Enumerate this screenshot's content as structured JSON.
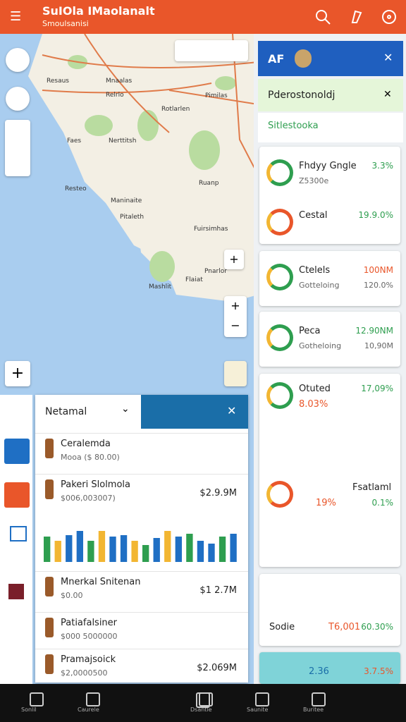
{
  "header": {
    "title": "SuIOla IMaolanalt",
    "subtitle": "Smoulsanisi"
  },
  "map": {
    "labels": [
      "Resaus",
      "Mnaalas",
      "Relrlo",
      "Pimilas",
      "Rotlarlen",
      "Faes",
      "Nerttitsh",
      "Ruanp",
      "Resteo",
      "Maninaite",
      "Pitaleth",
      "Fuirsimhas",
      "Pnarlor",
      "Mashlit",
      "Flaiat"
    ]
  },
  "panel": {
    "title": "AF",
    "highlight": "Pderostonoldj",
    "subtitle": "Sitlestooka",
    "cards": [
      {
        "rows": [
          {
            "name": "Fhdyy Gngle",
            "sub": "Z5300e",
            "value": "3.3%"
          },
          {
            "name": "Cestal",
            "value": "19.9.0%"
          }
        ]
      },
      {
        "rows": [
          {
            "name": "Ctelels",
            "sub": "Gotteloing",
            "value": "100NM",
            "value2": "120.0%"
          }
        ]
      },
      {
        "rows": [
          {
            "name": "Peca",
            "sub": "Gotheloing",
            "value": "12.90NM",
            "value2": "10,90M"
          }
        ]
      },
      {
        "rows": [
          {
            "name": "Otuted",
            "sub": "8.03%",
            "value": "17,09%"
          },
          {
            "name": "Fsatlaml",
            "sub": "19%",
            "value": "0.1%"
          }
        ]
      },
      {
        "rows": [
          {
            "name": "Sodie",
            "sub": "T6,001",
            "value": "60.30%"
          }
        ]
      },
      {
        "rows": [
          {
            "sub": "2.36",
            "value": "3.7.5%"
          }
        ]
      }
    ]
  },
  "sheet": {
    "title": "Netamal",
    "items": [
      {
        "name": "Ceralemda",
        "sub": "Mooa ($ 80.00)"
      },
      {
        "name": "Pakeri Slolmola",
        "sub": "$006,003007)",
        "value": "$2.9.9M"
      },
      {
        "name": "Mnerkal Snitenan",
        "sub": "$0.00",
        "value": "$1 2.7M"
      },
      {
        "name": "Patiafalsiner",
        "sub": "$000 5000000"
      },
      {
        "name": "Pramajsoick",
        "sub": "$2,0000500",
        "value": "$2.069M"
      }
    ],
    "chart": {
      "values": [
        36,
        30,
        38,
        44,
        30,
        44,
        36,
        38,
        30,
        24,
        34,
        44,
        36,
        40,
        30,
        26,
        36,
        40
      ],
      "colors": [
        "#2e9e4f",
        "#f2b632",
        "#1f6fc4",
        "#1f6fc4",
        "#2e9e4f",
        "#f2b632",
        "#1f6fc4",
        "#1f6fc4",
        "#f2b632",
        "#2e9e4f",
        "#1f6fc4",
        "#f2b632",
        "#1f6fc4",
        "#2e9e4f",
        "#1f6fc4",
        "#1f6fc4",
        "#2e9e4f",
        "#1f6fc4"
      ]
    }
  },
  "nav": {
    "labels": [
      "Sonlil",
      "Caurele",
      "Dsantle",
      "Saunite",
      "Buritee"
    ]
  }
}
